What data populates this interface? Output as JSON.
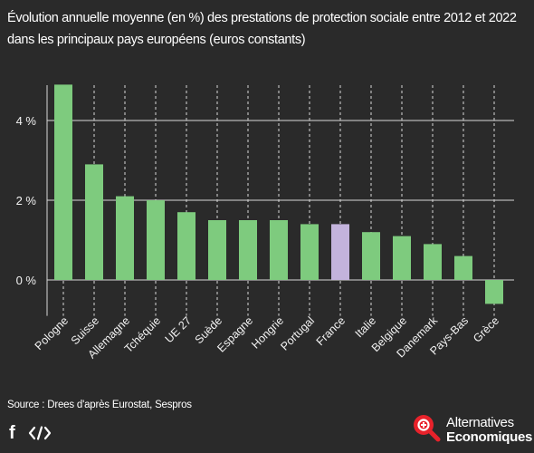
{
  "title": "Évolution annuelle moyenne (en %) des prestations de protection sociale entre 2012 et 2022 dans les principaux pays européens (euros constants)",
  "source": "Source : Drees d'après Eurostat, Sespros",
  "share": {
    "facebook_icon": "facebook-icon",
    "embed_icon": "embed-code-icon"
  },
  "brand": {
    "line1": "Alternatives",
    "line2": "Economiques",
    "logo_color": "#e8222b"
  },
  "colors": {
    "bar": "#7ecb7e",
    "highlight_bar": "#c3b3dc",
    "grid": "#d8d8d8",
    "background": "#2a2a2a"
  },
  "chart_data": {
    "type": "bar",
    "categories": [
      "Pologne",
      "Suisse",
      "Allemagne",
      "Tchéquie",
      "UE 27",
      "Suède",
      "Espagne",
      "Hongrie",
      "Portugal",
      "France",
      "Italie",
      "Belgique",
      "Danemark",
      "Pays-Bas",
      "Grèce"
    ],
    "values": [
      4.9,
      2.9,
      2.1,
      2.0,
      1.7,
      1.5,
      1.5,
      1.5,
      1.4,
      1.4,
      1.2,
      1.1,
      0.9,
      0.6,
      -0.6
    ],
    "highlight": "France",
    "yticks": [
      0,
      2,
      4
    ],
    "ytick_labels": [
      "0 %",
      "2 %",
      "4 %"
    ],
    "ylim": [
      -0.9,
      5.0
    ],
    "grid": true
  }
}
